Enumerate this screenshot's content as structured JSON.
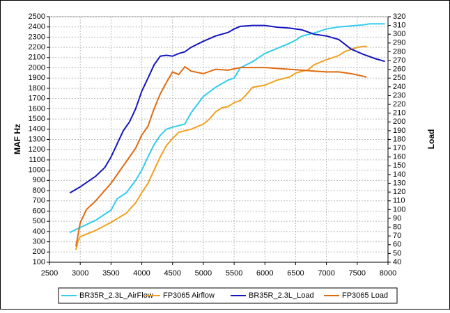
{
  "chart_data": {
    "type": "line",
    "y_label": "MAF Hz",
    "y2_label": "Load",
    "xlim": [
      2500,
      8000
    ],
    "xticks": [
      2500,
      3000,
      3500,
      4000,
      4500,
      5000,
      5500,
      6000,
      6500,
      7000,
      7500,
      8000
    ],
    "ylim": [
      100,
      2500
    ],
    "yticks": [
      100,
      200,
      300,
      400,
      500,
      600,
      700,
      800,
      900,
      1000,
      1100,
      1200,
      1300,
      1400,
      1500,
      1600,
      1700,
      1800,
      1900,
      2000,
      2100,
      2200,
      2300,
      2400,
      2500
    ],
    "y2lim": [
      40,
      320
    ],
    "y2ticks": [
      40,
      50,
      60,
      70,
      80,
      90,
      100,
      110,
      120,
      130,
      140,
      150,
      160,
      170,
      180,
      190,
      200,
      210,
      220,
      230,
      240,
      250,
      260,
      270,
      280,
      290,
      300,
      310,
      320
    ],
    "grid": true,
    "legend": "bottom",
    "series": [
      {
        "name": "BR35R_2.3L_AirFlow",
        "color": "#33ccee",
        "x": [
          2830,
          3000,
          3250,
          3500,
          3600,
          3750,
          3900,
          4000,
          4100,
          4200,
          4300,
          4400,
          4500,
          4700,
          4800,
          4900,
          5000,
          5200,
          5400,
          5500,
          5600,
          5800,
          6000,
          6200,
          6400,
          6500,
          6600,
          6800,
          7000,
          7200,
          7400,
          7600,
          7700,
          7950
        ],
        "values": [
          390,
          440,
          510,
          610,
          720,
          780,
          900,
          1000,
          1130,
          1250,
          1340,
          1400,
          1420,
          1450,
          1560,
          1640,
          1720,
          1810,
          1880,
          1900,
          2000,
          2060,
          2140,
          2190,
          2240,
          2270,
          2310,
          2340,
          2380,
          2400,
          2410,
          2420,
          2430,
          2430
        ]
      },
      {
        "name": "FP3065 Airflow",
        "color": "#f0a020",
        "x": [
          2930,
          2960,
          3000,
          3250,
          3500,
          3750,
          3900,
          4000,
          4100,
          4200,
          4300,
          4400,
          4500,
          4600,
          4800,
          5000,
          5100,
          5200,
          5300,
          5400,
          5500,
          5600,
          5700,
          5800,
          6000,
          6200,
          6400,
          6500,
          6700,
          6800,
          7000,
          7200,
          7300,
          7500,
          7600,
          7660
        ],
        "values": [
          220,
          300,
          350,
          410,
          490,
          580,
          680,
          780,
          870,
          1000,
          1130,
          1240,
          1310,
          1370,
          1400,
          1450,
          1500,
          1570,
          1610,
          1620,
          1660,
          1680,
          1740,
          1810,
          1830,
          1880,
          1910,
          1950,
          1980,
          2030,
          2080,
          2120,
          2160,
          2200,
          2210,
          2210
        ]
      },
      {
        "name": "BR35R_2.3L_Load",
        "color": "#1515c0",
        "axis": "y2",
        "x": [
          2830,
          3000,
          3250,
          3400,
          3500,
          3600,
          3700,
          3800,
          3900,
          4000,
          4100,
          4200,
          4300,
          4400,
          4500,
          4600,
          4700,
          4800,
          5000,
          5200,
          5400,
          5500,
          5600,
          5800,
          6000,
          6200,
          6400,
          6600,
          6800,
          7000,
          7200,
          7400,
          7600,
          7800,
          7950
        ],
        "values": [
          119,
          126,
          138,
          148,
          160,
          175,
          190,
          200,
          215,
          235,
          250,
          265,
          275,
          276,
          275,
          278,
          280,
          285,
          292,
          298,
          302,
          306,
          309,
          310,
          310,
          308,
          307,
          305,
          300,
          298,
          294,
          283,
          277,
          272,
          269
        ]
      },
      {
        "name": "FP3065 Load",
        "color": "#e06a10",
        "axis": "y2",
        "x": [
          2930,
          3000,
          3100,
          3250,
          3500,
          3750,
          3900,
          4000,
          4100,
          4200,
          4300,
          4400,
          4500,
          4600,
          4700,
          4800,
          5000,
          5200,
          5400,
          5600,
          5800,
          6000,
          6200,
          6400,
          6600,
          6800,
          7000,
          7200,
          7400,
          7600,
          7650
        ],
        "values": [
          58,
          85,
          100,
          110,
          130,
          155,
          170,
          185,
          195,
          215,
          232,
          245,
          257,
          254,
          263,
          258,
          255,
          260,
          259,
          262,
          262,
          262,
          261,
          260,
          259,
          258,
          257,
          257,
          255,
          252,
          251
        ]
      }
    ]
  }
}
